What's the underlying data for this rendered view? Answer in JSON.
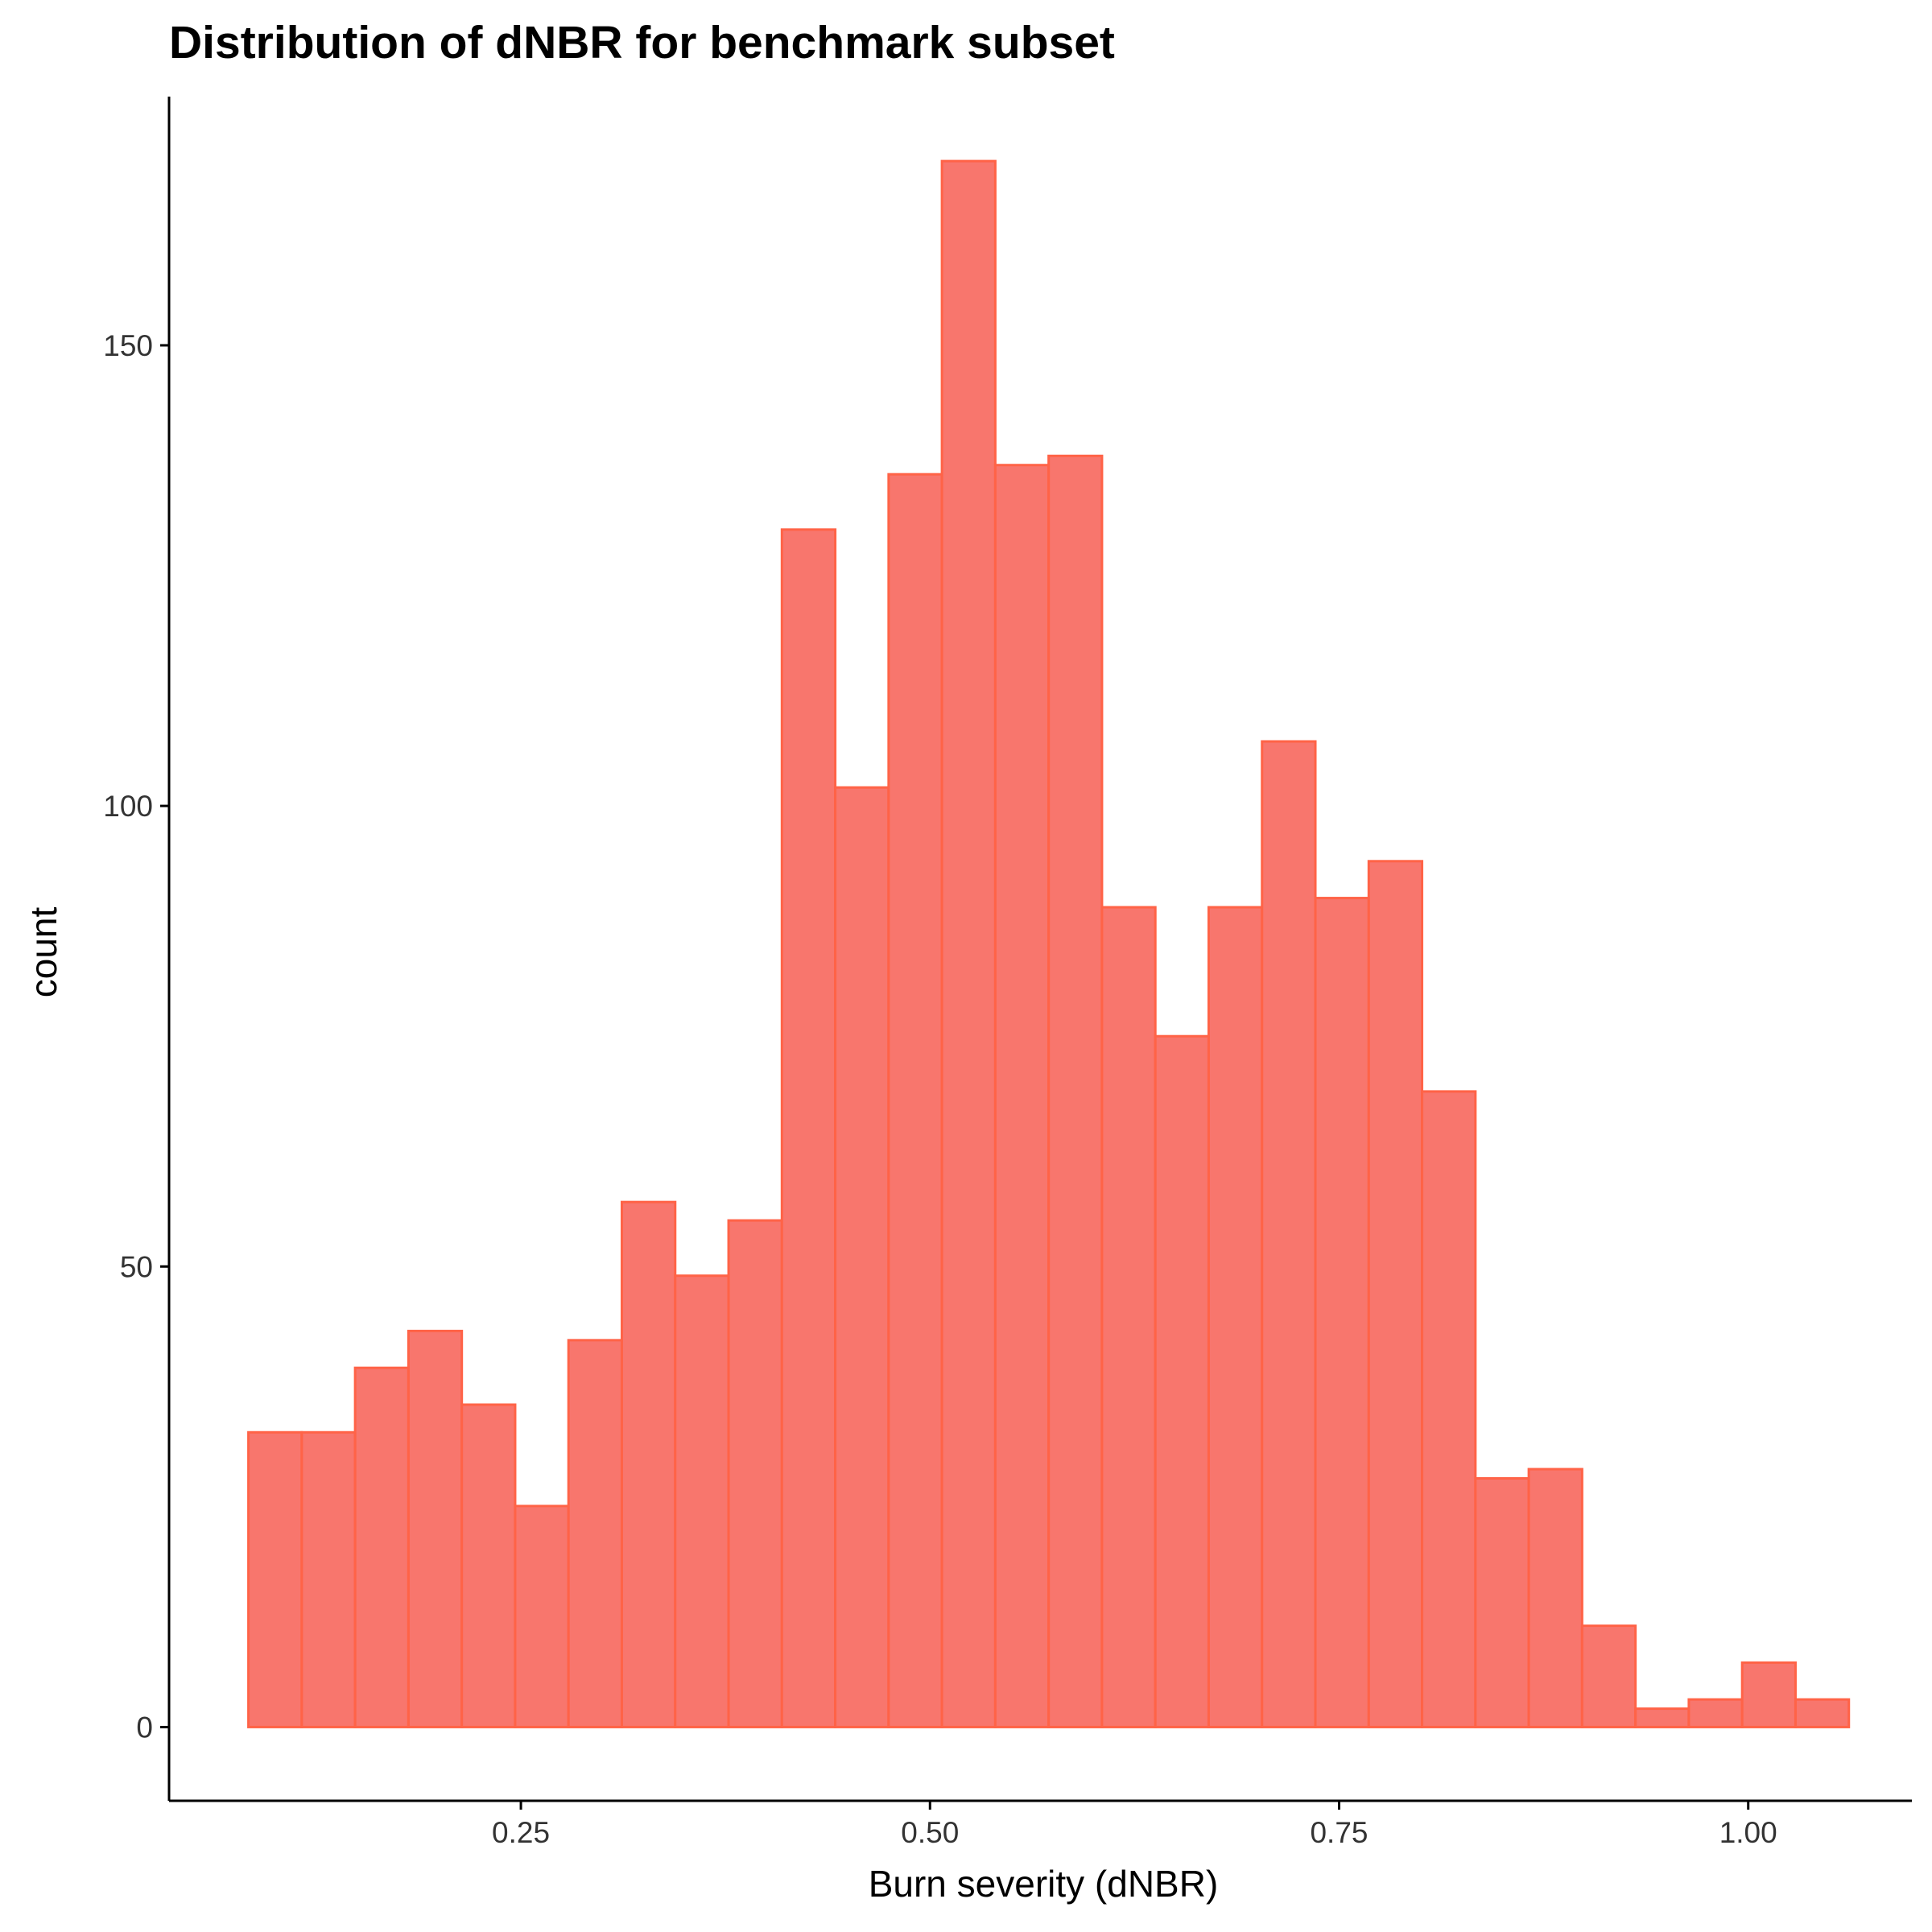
{
  "chart_data": {
    "type": "bar",
    "title": "Distribution of dNBR for benchmark subset",
    "xlabel": "Burn severity (dNBR)",
    "ylabel": "count",
    "x_tick_labels": [
      "0.25",
      "0.50",
      "0.75",
      "1.00"
    ],
    "x_tick_values": [
      0.25,
      0.5,
      0.75,
      1.0
    ],
    "y_tick_labels": [
      "0",
      "50",
      "100",
      "150"
    ],
    "y_tick_values": [
      0,
      50,
      100,
      150
    ],
    "xlim": [
      0.035,
      1.1
    ],
    "ylim": [
      -8,
      177
    ],
    "bin_width": 0.0326,
    "bin_start": 0.0835,
    "values": [
      32,
      32,
      39,
      43,
      35,
      24,
      42,
      57,
      49,
      55,
      130,
      102,
      136,
      170,
      137,
      138,
      89,
      75,
      89,
      107,
      90,
      94,
      69,
      27,
      28,
      11,
      2,
      3,
      7,
      3
    ],
    "grid": false,
    "legend": "none",
    "colors": {
      "fill": "#F8766D",
      "outline": "#FF6347",
      "axis": "#000000"
    }
  }
}
